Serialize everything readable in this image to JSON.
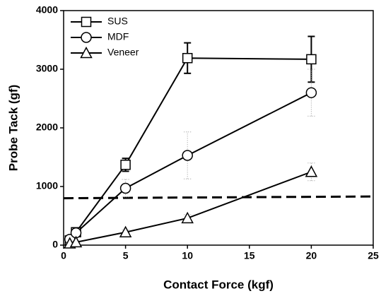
{
  "chart_data": {
    "type": "line",
    "xlabel": "Contact Force (kgf)",
    "ylabel": "Probe Tack (gf)",
    "x": [
      0.5,
      1,
      5,
      10,
      20
    ],
    "series": [
      {
        "name": "SUS",
        "color": "#000000",
        "marker": "square",
        "error_style": "solid",
        "values": [
          80,
          220,
          1370,
          3190,
          3170
        ],
        "errors": [
          40,
          60,
          110,
          260,
          390
        ]
      },
      {
        "name": "MDF",
        "color": "#000000",
        "marker": "circle",
        "error_style": "dotted",
        "values": [
          100,
          210,
          970,
          1530,
          2600
        ],
        "errors": [
          30,
          50,
          150,
          400,
          400
        ]
      },
      {
        "name": "Veneer",
        "color": "#000000",
        "marker": "triangle",
        "error_style": "dotted",
        "values": [
          30,
          50,
          220,
          460,
          1250
        ],
        "errors": [
          10,
          20,
          40,
          60,
          150
        ]
      }
    ],
    "reference_line": {
      "x": [
        0,
        25
      ],
      "values": [
        800,
        830
      ],
      "style": "dashed"
    },
    "xlim": [
      0,
      25
    ],
    "xticks": [
      0,
      5,
      10,
      15,
      20,
      25
    ],
    "ylim": [
      0,
      4000
    ],
    "yticks": [
      0,
      1000,
      2000,
      3000,
      4000
    ],
    "legend": "upper left"
  }
}
